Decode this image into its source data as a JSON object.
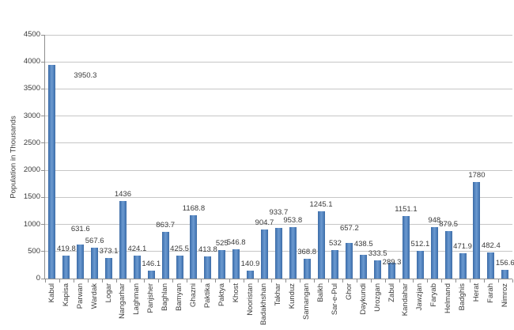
{
  "chart_data": {
    "type": "bar",
    "title": "",
    "xlabel": "",
    "ylabel": "Population in Thousands",
    "ylim": [
      0,
      4500
    ],
    "yticks": [
      0,
      500,
      1000,
      1500,
      2000,
      2500,
      3000,
      3500,
      4000,
      4500
    ],
    "grid": true,
    "legend": "none",
    "categories": [
      "Kabul",
      "Kapisa",
      "Parwan",
      "Wardak",
      "Logar",
      "Nangarhar",
      "Laghman",
      "Panjsher",
      "Baghlan",
      "Bamyan",
      "Ghazni",
      "Paktika",
      "Paktya",
      "Khost",
      "Nooristan",
      "Badakhshan",
      "Takhar",
      "Kunduz",
      "Samangan",
      "Balkh",
      "Sar-e-Pul",
      "Ghor",
      "Daykundi",
      "Urozgan",
      "Zabul",
      "Kandahar",
      "Jawzjan",
      "Faryab",
      "Helmand",
      "Badghis",
      "Herat",
      "Farah",
      "Nimroz"
    ],
    "values": [
      3950.3,
      419.8,
      631.6,
      567.6,
      373.1,
      1436,
      424.1,
      146.1,
      863.7,
      425.5,
      1168.8,
      413.8,
      525,
      546.8,
      140.9,
      904.7,
      933.7,
      953.8,
      368.8,
      1245.1,
      532,
      657.2,
      438.5,
      333.5,
      289.3,
      1151.1,
      512.1,
      948,
      879.5,
      471.9,
      1780,
      482.4,
      156.6
    ],
    "label_offsets": {
      "0": [
        42,
        22
      ],
      "2": [
        0,
        -11
      ],
      "16": [
        0,
        -11
      ],
      "21": [
        0,
        -10
      ],
      "22": [
        0,
        -5
      ],
      "24": [
        0,
        8
      ]
    },
    "colors": {
      "bar_fill": "#4F81BD",
      "bar_edge": "#3E6BA4",
      "bar_mid": "#6D9AD0",
      "gridline": "#C6C6C6",
      "axis": "#8E8E8E",
      "text": "#3a3a3a"
    }
  }
}
